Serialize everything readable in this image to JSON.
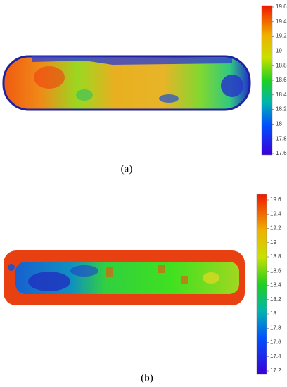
{
  "panels": [
    {
      "label": "(a)",
      "colorbar": {
        "ticks": [
          17.6,
          17.8,
          18,
          18.2,
          18.4,
          18.6,
          18.8,
          19,
          19.2,
          19.4,
          19.6
        ]
      }
    },
    {
      "label": "(b)",
      "colorbar": {
        "ticks": [
          17.2,
          17.4,
          17.6,
          17.8,
          18,
          18.2,
          18.4,
          18.6,
          18.8,
          19,
          19.2,
          19.4,
          19.6
        ]
      }
    }
  ]
}
